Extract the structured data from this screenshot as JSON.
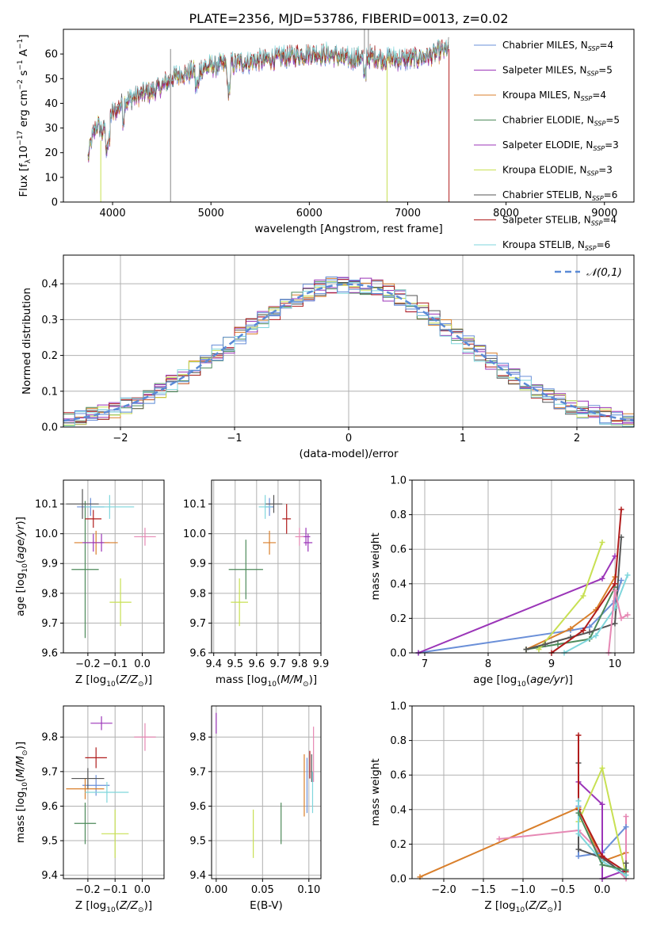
{
  "page": {
    "title": "PLATE=2356, MJD=53786, FIBERID=0013, z=0.02"
  },
  "colors": {
    "Chabrier MILES": "#6a8fd8",
    "Salpeter MILES": "#9b35b8",
    "Kroupa MILES": "#d97f2b",
    "Chabrier ELODIE": "#4d8a5a",
    "Salpeter ELODIE": "#9b35b8",
    "Kroupa ELODIE": "#c8e053",
    "Chabrier STELIB": "#555555",
    "Salpeter STELIB": "#b01c1c",
    "Kroupa STELIB": "#7fd6dc",
    "Gaussian": "#5a8ad6",
    "pinkish": "#e688b4"
  },
  "chart_data": [
    {
      "id": "spectrum",
      "type": "line",
      "xlabel": "wavelength [Angstrom, rest frame]",
      "ylabel": "Flux [f_λ10^-17 erg cm^-2 s^-1 A^-1]",
      "xlim": [
        3500,
        9300
      ],
      "ylim": [
        0,
        70
      ],
      "xticks": [
        "4000",
        "5000",
        "6000",
        "7000",
        "8000",
        "9000"
      ],
      "yticks": [
        "0",
        "10",
        "20",
        "30",
        "40",
        "50",
        "60"
      ],
      "legend_position": "top-right",
      "legend": [
        {
          "label": "Chabrier MILES",
          "nssp": "4",
          "color": "#6a8fd8"
        },
        {
          "label": "Salpeter MILES",
          "nssp": "5",
          "color": "#9b35b8"
        },
        {
          "label": "Kroupa MILES",
          "nssp": "4",
          "color": "#d97f2b"
        },
        {
          "label": "Chabrier ELODIE",
          "nssp": "5",
          "color": "#4d8a5a"
        },
        {
          "label": "Salpeter ELODIE",
          "nssp": "3",
          "color": "#9b35b8"
        },
        {
          "label": "Kroupa ELODIE",
          "nssp": "3",
          "color": "#c8e053"
        },
        {
          "label": "Chabrier STELIB",
          "nssp": "6",
          "color": "#555555"
        },
        {
          "label": "Salpeter STELIB",
          "nssp": "4",
          "color": "#b01c1c"
        },
        {
          "label": "Kroupa STELIB",
          "nssp": "6",
          "color": "#7fd6dc"
        }
      ],
      "shape": {
        "x": [
          3750,
          3800,
          3850,
          3900,
          3950,
          4000,
          4100,
          4200,
          4300,
          4400,
          4500,
          4600,
          4700,
          4800,
          4900,
          5000,
          5200,
          5400,
          5600,
          5800,
          6000,
          6200,
          6400,
          6600,
          6800,
          7000,
          7200,
          7400
        ],
        "y": [
          18,
          27,
          32,
          28,
          34,
          36,
          40,
          42,
          44,
          45,
          47,
          50,
          52,
          53,
          54,
          55,
          56,
          57,
          58,
          59,
          60,
          60,
          58,
          59,
          58,
          58,
          59,
          62
        ]
      }
    },
    {
      "id": "residuals",
      "type": "bar",
      "xlabel": "(data-model)/error",
      "ylabel": "Normed distribution",
      "xlim": [
        -2.5,
        2.5
      ],
      "ylim": [
        0,
        0.48
      ],
      "xticks": [
        "−2",
        "−1",
        "0",
        "1",
        "2"
      ],
      "yticks": [
        "0.0",
        "0.1",
        "0.2",
        "0.3",
        "0.4"
      ],
      "legend_position": "top-right",
      "gaussian_label": "𝒩(0,1)",
      "bin_width": 0.1
    },
    {
      "id": "age-vs-Z",
      "type": "scatter",
      "xlabel": "Z [log10(Z/Z⊙)]",
      "ylabel": "age  [log10(age/yr)]",
      "xlim": [
        -0.29,
        0.08
      ],
      "ylim": [
        9.6,
        10.18
      ],
      "xticks": [
        "−0.2",
        "−0.1",
        "0.0"
      ],
      "yticks": [
        "9.6",
        "9.7",
        "9.8",
        "9.9",
        "10.0",
        "10.1"
      ],
      "points": [
        {
          "x": -0.19,
          "y": 10.09,
          "xerr": 0.05,
          "yerr": 0.03,
          "color": "#6a8fd8"
        },
        {
          "x": -0.15,
          "y": 9.97,
          "xerr": 0.03,
          "yerr": 0.03,
          "color": "#9b35b8"
        },
        {
          "x": -0.17,
          "y": 9.97,
          "xerr": 0.08,
          "yerr": 0.04,
          "color": "#d97f2b"
        },
        {
          "x": -0.21,
          "y": 9.88,
          "xerr": 0.05,
          "yerr": 0.23,
          "color": "#4d8a5a"
        },
        {
          "x": -0.18,
          "y": 9.97,
          "xerr": 0.04,
          "yerr": 0.03,
          "color": "#9b35b8"
        },
        {
          "x": -0.08,
          "y": 9.77,
          "xerr": 0.04,
          "yerr": 0.08,
          "color": "#c8e053"
        },
        {
          "x": -0.22,
          "y": 10.1,
          "xerr": 0.06,
          "yerr": 0.05,
          "color": "#555555"
        },
        {
          "x": -0.18,
          "y": 10.05,
          "xerr": 0.03,
          "yerr": 0.03,
          "color": "#b01c1c"
        },
        {
          "x": -0.12,
          "y": 10.09,
          "xerr": 0.09,
          "yerr": 0.04,
          "color": "#7fd6dc"
        },
        {
          "x": 0.01,
          "y": 9.99,
          "xerr": 0.04,
          "yerr": 0.03,
          "color": "#e688b4"
        }
      ]
    },
    {
      "id": "age-vs-mass",
      "type": "scatter",
      "xlabel": "mass [log10(M/M⊙)]",
      "ylabel": "",
      "xlim": [
        9.39,
        9.9
      ],
      "ylim": [
        9.6,
        10.18
      ],
      "xticks": [
        "9.4",
        "9.5",
        "9.6",
        "9.7",
        "9.8",
        "9.9"
      ],
      "yticks": [
        "9.6",
        "9.7",
        "9.8",
        "9.9",
        "10.0",
        "10.1"
      ],
      "points": [
        {
          "x": 9.66,
          "y": 10.09,
          "xerr": 0.02,
          "yerr": 0.03,
          "color": "#6a8fd8"
        },
        {
          "x": 9.84,
          "y": 9.97,
          "xerr": 0.02,
          "yerr": 0.03,
          "color": "#9b35b8"
        },
        {
          "x": 9.66,
          "y": 9.97,
          "xerr": 0.03,
          "yerr": 0.04,
          "color": "#d97f2b"
        },
        {
          "x": 9.55,
          "y": 9.88,
          "xerr": 0.08,
          "yerr": 0.1,
          "color": "#4d8a5a"
        },
        {
          "x": 9.83,
          "y": 9.99,
          "xerr": 0.02,
          "yerr": 0.03,
          "color": "#9b35b8"
        },
        {
          "x": 9.52,
          "y": 9.77,
          "xerr": 0.04,
          "yerr": 0.08,
          "color": "#c8e053"
        },
        {
          "x": 9.68,
          "y": 10.1,
          "xerr": 0.04,
          "yerr": 0.03,
          "color": "#555555"
        },
        {
          "x": 9.74,
          "y": 10.05,
          "xerr": 0.02,
          "yerr": 0.05,
          "color": "#b01c1c"
        },
        {
          "x": 9.64,
          "y": 10.09,
          "xerr": 0.03,
          "yerr": 0.04,
          "color": "#7fd6dc"
        },
        {
          "x": 9.8,
          "y": 9.99,
          "xerr": 0.02,
          "yerr": 0.03,
          "color": "#e688b4"
        }
      ]
    },
    {
      "id": "mass-weight-vs-age",
      "type": "line",
      "xlabel": "age  [log10(age/yr)]",
      "ylabel": "mass weight",
      "xlim": [
        6.8,
        10.3
      ],
      "ylim": [
        0,
        1.0
      ],
      "xticks": [
        "7",
        "8",
        "9",
        "10"
      ],
      "yticks": [
        "0.0",
        "0.2",
        "0.4",
        "0.6",
        "0.8",
        "1.0"
      ],
      "series": [
        {
          "color": "#6a8fd8",
          "x": [
            6.9,
            9.3,
            9.6,
            10.0,
            10.1
          ],
          "y": [
            0.0,
            0.13,
            0.15,
            0.3,
            0.42
          ]
        },
        {
          "color": "#9b35b8",
          "x": [
            6.9,
            9.8,
            10.0
          ],
          "y": [
            0.0,
            0.43,
            0.56
          ]
        },
        {
          "color": "#d97f2b",
          "x": [
            8.6,
            9.3,
            9.7,
            10.0
          ],
          "y": [
            0.02,
            0.14,
            0.25,
            0.44
          ]
        },
        {
          "color": "#4d8a5a",
          "x": [
            8.6,
            9.1,
            9.6,
            10.0
          ],
          "y": [
            0.02,
            0.05,
            0.08,
            0.38
          ]
        },
        {
          "color": "#c8e053",
          "x": [
            8.8,
            9.5,
            9.8
          ],
          "y": [
            0.02,
            0.33,
            0.64
          ]
        },
        {
          "color": "#555555",
          "x": [
            8.6,
            8.9,
            9.3,
            9.6,
            10.0,
            10.1
          ],
          "y": [
            0.02,
            0.05,
            0.09,
            0.12,
            0.17,
            0.67
          ]
        },
        {
          "color": "#b01c1c",
          "x": [
            9.0,
            9.5,
            10.0,
            10.1
          ],
          "y": [
            0.0,
            0.13,
            0.4,
            0.83
          ]
        },
        {
          "color": "#7fd6dc",
          "x": [
            9.2,
            9.7,
            10.0,
            10.2
          ],
          "y": [
            0.0,
            0.1,
            0.26,
            0.45
          ]
        },
        {
          "color": "#e688b4",
          "x": [
            9.9,
            10.0,
            10.1,
            10.2
          ],
          "y": [
            0.0,
            0.36,
            0.2,
            0.22
          ]
        }
      ]
    },
    {
      "id": "mass-vs-Z",
      "type": "scatter",
      "xlabel": "Z [log10(Z/Z⊙)]",
      "ylabel": "mass [log10(M/M⊙)]",
      "xlim": [
        -0.29,
        0.08
      ],
      "ylim": [
        9.39,
        9.89
      ],
      "xticks": [
        "−0.2",
        "−0.1",
        "0.0"
      ],
      "yticks": [
        "9.4",
        "9.5",
        "9.6",
        "9.7",
        "9.8"
      ],
      "points": [
        {
          "x": -0.17,
          "y": 9.66,
          "xerr": 0.05,
          "yerr": 0.03,
          "color": "#6a8fd8"
        },
        {
          "x": -0.15,
          "y": 9.84,
          "xerr": 0.04,
          "yerr": 0.02,
          "color": "#9b35b8"
        },
        {
          "x": -0.21,
          "y": 9.65,
          "xerr": 0.07,
          "yerr": 0.03,
          "color": "#d97f2b"
        },
        {
          "x": -0.21,
          "y": 9.55,
          "xerr": 0.04,
          "yerr": 0.06,
          "color": "#4d8a5a"
        },
        {
          "x": -0.1,
          "y": 9.52,
          "xerr": 0.05,
          "yerr": 0.07,
          "color": "#c8e053"
        },
        {
          "x": -0.2,
          "y": 9.68,
          "xerr": 0.06,
          "yerr": 0.03,
          "color": "#555555"
        },
        {
          "x": -0.17,
          "y": 9.74,
          "xerr": 0.04,
          "yerr": 0.03,
          "color": "#b01c1c"
        },
        {
          "x": -0.13,
          "y": 9.64,
          "xerr": 0.08,
          "yerr": 0.03,
          "color": "#7fd6dc"
        },
        {
          "x": 0.01,
          "y": 9.8,
          "xerr": 0.04,
          "yerr": 0.04,
          "color": "#e688b4"
        }
      ]
    },
    {
      "id": "mass-vs-EBV",
      "type": "scatter",
      "xlabel": "E(B-V)",
      "ylabel": "",
      "xlim": [
        -0.005,
        0.113
      ],
      "ylim": [
        9.39,
        9.89
      ],
      "xticks": [
        "0.00",
        "0.05",
        "0.10"
      ],
      "yticks": [
        "9.4",
        "9.5",
        "9.6",
        "9.7",
        "9.8"
      ],
      "points": [
        {
          "x": 0.0,
          "y": 9.84,
          "yerr": 0.03,
          "color": "#9b35b8"
        },
        {
          "x": 0.04,
          "y": 9.52,
          "yerr": 0.07,
          "color": "#c8e053"
        },
        {
          "x": 0.07,
          "y": 9.55,
          "yerr": 0.06,
          "color": "#4d8a5a"
        },
        {
          "x": 0.095,
          "y": 9.66,
          "yerr": 0.09,
          "color": "#d97f2b"
        },
        {
          "x": 0.098,
          "y": 9.66,
          "yerr": 0.08,
          "color": "#6a8fd8"
        },
        {
          "x": 0.101,
          "y": 9.72,
          "yerr": 0.04,
          "color": "#b01c1c"
        },
        {
          "x": 0.103,
          "y": 9.71,
          "yerr": 0.04,
          "color": "#555555"
        },
        {
          "x": 0.104,
          "y": 9.64,
          "yerr": 0.06,
          "color": "#7fd6dc"
        },
        {
          "x": 0.105,
          "y": 9.75,
          "yerr": 0.08,
          "color": "#e688b4"
        }
      ]
    },
    {
      "id": "mass-weight-vs-Z",
      "type": "line",
      "xlabel": "Z [log10(Z/Z⊙)]",
      "ylabel": "mass weight",
      "xlim": [
        -2.4,
        0.4
      ],
      "ylim": [
        0,
        1.0
      ],
      "xticks": [
        "−2.0",
        "−1.5",
        "−1.0",
        "−0.5",
        "0.0"
      ],
      "yticks": [
        "0.0",
        "0.2",
        "0.4",
        "0.6",
        "0.8",
        "1.0"
      ],
      "series": [
        {
          "color": "#d97f2b",
          "x": [
            -2.3,
            -0.3,
            0.0,
            0.3
          ],
          "y": [
            0.01,
            0.41,
            0.1,
            0.15
          ]
        },
        {
          "color": "#e688b4",
          "x": [
            -1.3,
            -0.3,
            0.3,
            0.3
          ],
          "y": [
            0.23,
            0.28,
            0.0,
            0.36
          ]
        },
        {
          "color": "#6a8fd8",
          "x": [
            -0.3,
            -0.3,
            0.0,
            0.3
          ],
          "y": [
            0.42,
            0.13,
            0.15,
            0.3
          ]
        },
        {
          "color": "#9b35b8",
          "x": [
            -0.3,
            0.0,
            0.0,
            0.3
          ],
          "y": [
            0.56,
            0.43,
            0.0,
            0.05
          ]
        },
        {
          "color": "#c8e053",
          "x": [
            -0.3,
            0.0,
            0.3
          ],
          "y": [
            0.33,
            0.64,
            0.02
          ]
        },
        {
          "color": "#555555",
          "x": [
            -0.3,
            -0.3,
            0.0,
            0.3,
            0.3
          ],
          "y": [
            0.67,
            0.17,
            0.12,
            0.02,
            0.09
          ]
        },
        {
          "color": "#b01c1c",
          "x": [
            -0.3,
            -0.3,
            0.0,
            0.3
          ],
          "y": [
            0.83,
            0.4,
            0.13,
            0.04
          ]
        },
        {
          "color": "#7fd6dc",
          "x": [
            -0.3,
            -0.3,
            0.0,
            0.3
          ],
          "y": [
            0.45,
            0.26,
            0.1,
            0.02
          ]
        },
        {
          "color": "#4d8a5a",
          "x": [
            -0.3,
            0.0,
            0.3
          ],
          "y": [
            0.38,
            0.08,
            0.05
          ]
        }
      ]
    }
  ]
}
